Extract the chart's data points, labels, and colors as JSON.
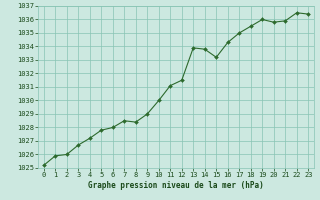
{
  "x": [
    0,
    1,
    2,
    3,
    4,
    5,
    6,
    7,
    8,
    9,
    10,
    11,
    12,
    13,
    14,
    15,
    16,
    17,
    18,
    19,
    20,
    21,
    22,
    23
  ],
  "y": [
    1025.2,
    1025.9,
    1026.0,
    1026.7,
    1027.2,
    1027.8,
    1028.0,
    1028.5,
    1028.4,
    1029.0,
    1030.0,
    1031.1,
    1031.5,
    1033.9,
    1033.8,
    1033.2,
    1034.3,
    1035.0,
    1035.5,
    1036.0,
    1035.8,
    1035.9,
    1036.5,
    1036.4
  ],
  "ylim": [
    1025,
    1037
  ],
  "xlim_min": -0.5,
  "xlim_max": 23.5,
  "yticks": [
    1025,
    1026,
    1027,
    1028,
    1029,
    1030,
    1031,
    1032,
    1033,
    1034,
    1035,
    1036,
    1037
  ],
  "xticks": [
    0,
    1,
    2,
    3,
    4,
    5,
    6,
    7,
    8,
    9,
    10,
    11,
    12,
    13,
    14,
    15,
    16,
    17,
    18,
    19,
    20,
    21,
    22,
    23
  ],
  "line_color": "#2d6a2d",
  "marker_color": "#2d6a2d",
  "bg_color": "#cce8e0",
  "grid_color": "#88c4b4",
  "xlabel": "Graphe pression niveau de la mer (hPa)",
  "xlabel_color": "#1a4a1a",
  "tick_color": "#1a4a1a",
  "fig_bg": "#cce8e0",
  "tick_fontsize": 5.0,
  "xlabel_fontsize": 5.5
}
